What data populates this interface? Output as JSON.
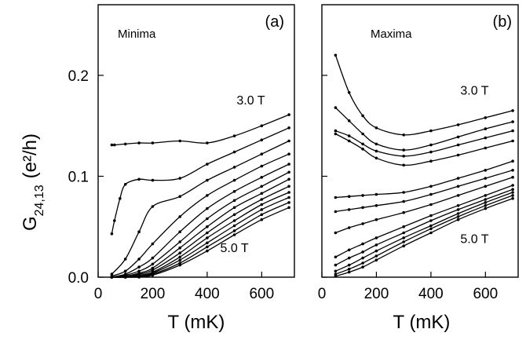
{
  "figure": {
    "ylabel": "G",
    "ylabel_sub": "24,13",
    "ylabel_unit": "(e²/h)"
  },
  "chart_data": [
    {
      "type": "line",
      "panel_label": "(a)",
      "title": "Minima",
      "xlabel": "T (mK)",
      "ylabel": "G24,13 (e²/h)",
      "xlim": [
        0,
        720
      ],
      "ylim": [
        0,
        0.27
      ],
      "xticks": [
        0,
        200,
        400,
        600
      ],
      "yticks": [
        0.0,
        0.1,
        0.2
      ],
      "ytick_labels": [
        "0.0",
        "0.1",
        "0.2"
      ],
      "grid": false,
      "annotations": [
        {
          "text": "3.0 T",
          "x": 560,
          "y": 0.171
        },
        {
          "text": "5.0 T",
          "x": 500,
          "y": 0.025
        }
      ],
      "series": [
        {
          "x": [
            50,
            60,
            100,
            150,
            200,
            300,
            400,
            500,
            600,
            700
          ],
          "y": [
            0.131,
            0.131,
            0.132,
            0.133,
            0.133,
            0.135,
            0.133,
            0.14,
            0.15,
            0.161
          ]
        },
        {
          "x": [
            50,
            60,
            80,
            100,
            150,
            200,
            300,
            400,
            500,
            600,
            700
          ],
          "y": [
            0.043,
            0.056,
            0.078,
            0.092,
            0.097,
            0.096,
            0.098,
            0.112,
            0.124,
            0.136,
            0.148
          ]
        },
        {
          "x": [
            50,
            100,
            150,
            200,
            300,
            400,
            500,
            600,
            700
          ],
          "y": [
            0.003,
            0.018,
            0.045,
            0.07,
            0.08,
            0.096,
            0.109,
            0.122,
            0.135
          ]
        },
        {
          "x": [
            50,
            100,
            150,
            200,
            300,
            400,
            500,
            600,
            700
          ],
          "y": [
            0.001,
            0.006,
            0.018,
            0.033,
            0.06,
            0.081,
            0.096,
            0.11,
            0.122
          ]
        },
        {
          "x": [
            50,
            100,
            150,
            200,
            300,
            400,
            500,
            600,
            700
          ],
          "y": [
            0.0,
            0.003,
            0.01,
            0.019,
            0.045,
            0.068,
            0.085,
            0.099,
            0.112
          ]
        },
        {
          "x": [
            50,
            100,
            150,
            200,
            300,
            400,
            500,
            600,
            700
          ],
          "y": [
            0.0,
            0.002,
            0.006,
            0.013,
            0.035,
            0.058,
            0.076,
            0.09,
            0.104
          ]
        },
        {
          "x": [
            50,
            100,
            150,
            200,
            300,
            400,
            500,
            600,
            700
          ],
          "y": [
            0.0,
            0.001,
            0.004,
            0.009,
            0.029,
            0.05,
            0.069,
            0.083,
            0.097
          ]
        },
        {
          "x": [
            50,
            100,
            150,
            200,
            300,
            400,
            500,
            600,
            700
          ],
          "y": [
            0.0,
            0.001,
            0.003,
            0.007,
            0.024,
            0.044,
            0.062,
            0.077,
            0.09
          ]
        },
        {
          "x": [
            50,
            100,
            150,
            200,
            300,
            400,
            500,
            600,
            700
          ],
          "y": [
            0.0,
            0.0,
            0.002,
            0.005,
            0.02,
            0.039,
            0.056,
            0.072,
            0.084
          ]
        },
        {
          "x": [
            50,
            100,
            150,
            200,
            300,
            400,
            500,
            600,
            700
          ],
          "y": [
            0.0,
            0.0,
            0.001,
            0.004,
            0.017,
            0.034,
            0.051,
            0.067,
            0.079
          ]
        },
        {
          "x": [
            50,
            100,
            150,
            200,
            300,
            400,
            500,
            600,
            700
          ],
          "y": [
            0.0,
            0.0,
            0.001,
            0.003,
            0.014,
            0.03,
            0.046,
            0.062,
            0.074
          ]
        },
        {
          "x": [
            50,
            100,
            150,
            200,
            300,
            400,
            500,
            600,
            700
          ],
          "y": [
            0.0,
            0.0,
            0.0,
            0.002,
            0.012,
            0.026,
            0.042,
            0.057,
            0.069
          ]
        }
      ]
    },
    {
      "type": "line",
      "panel_label": "(b)",
      "title": "Maxima",
      "xlabel": "T (mK)",
      "ylabel": "G24,13 (e²/h)",
      "xlim": [
        0,
        720
      ],
      "ylim": [
        0,
        0.27
      ],
      "xticks": [
        0,
        200,
        400,
        600
      ],
      "yticks": [
        0.0,
        0.1,
        0.2
      ],
      "grid": false,
      "annotations": [
        {
          "text": "3.0 T",
          "x": 560,
          "y": 0.181
        },
        {
          "text": "5.0 T",
          "x": 560,
          "y": 0.034
        }
      ],
      "series": [
        {
          "x": [
            50,
            100,
            150,
            200,
            300,
            400,
            500,
            600,
            700
          ],
          "y": [
            0.22,
            0.183,
            0.16,
            0.148,
            0.141,
            0.145,
            0.151,
            0.158,
            0.165
          ]
        },
        {
          "x": [
            50,
            100,
            150,
            200,
            300,
            400,
            500,
            600,
            700
          ],
          "y": [
            0.168,
            0.155,
            0.142,
            0.132,
            0.126,
            0.131,
            0.139,
            0.147,
            0.154
          ]
        },
        {
          "x": [
            50,
            100,
            150,
            200,
            300,
            400,
            500,
            600,
            700
          ],
          "y": [
            0.145,
            0.14,
            0.132,
            0.125,
            0.12,
            0.124,
            0.131,
            0.138,
            0.145
          ]
        },
        {
          "x": [
            50,
            100,
            150,
            200,
            300,
            400,
            500,
            600,
            700
          ],
          "y": [
            0.142,
            0.135,
            0.127,
            0.118,
            0.111,
            0.115,
            0.121,
            0.128,
            0.135
          ]
        },
        {
          "x": [
            50,
            100,
            150,
            200,
            300,
            400,
            500,
            600,
            700
          ],
          "y": [
            0.079,
            0.08,
            0.081,
            0.082,
            0.084,
            0.09,
            0.098,
            0.106,
            0.115
          ]
        },
        {
          "x": [
            50,
            100,
            150,
            200,
            300,
            400,
            500,
            600,
            700
          ],
          "y": [
            0.065,
            0.067,
            0.069,
            0.071,
            0.075,
            0.082,
            0.09,
            0.098,
            0.106
          ]
        },
        {
          "x": [
            50,
            100,
            150,
            200,
            300,
            400,
            500,
            600,
            700
          ],
          "y": [
            0.044,
            0.049,
            0.053,
            0.057,
            0.064,
            0.072,
            0.081,
            0.09,
            0.099
          ]
        },
        {
          "x": [
            50,
            100,
            150,
            200,
            300,
            400,
            500,
            600,
            700
          ],
          "y": [
            0.02,
            0.027,
            0.033,
            0.039,
            0.05,
            0.061,
            0.071,
            0.081,
            0.091
          ]
        },
        {
          "x": [
            50,
            100,
            150,
            200,
            300,
            400,
            500,
            600,
            700
          ],
          "y": [
            0.012,
            0.019,
            0.025,
            0.032,
            0.044,
            0.056,
            0.067,
            0.077,
            0.087
          ]
        },
        {
          "x": [
            50,
            100,
            150,
            200,
            300,
            400,
            500,
            600,
            700
          ],
          "y": [
            0.006,
            0.012,
            0.019,
            0.026,
            0.039,
            0.051,
            0.063,
            0.074,
            0.084
          ]
        },
        {
          "x": [
            50,
            100,
            150,
            200,
            300,
            400,
            500,
            600,
            700
          ],
          "y": [
            0.003,
            0.008,
            0.014,
            0.021,
            0.035,
            0.048,
            0.06,
            0.071,
            0.081
          ]
        },
        {
          "x": [
            50,
            100,
            150,
            200,
            300,
            400,
            500,
            600,
            700
          ],
          "y": [
            0.001,
            0.005,
            0.01,
            0.017,
            0.031,
            0.044,
            0.057,
            0.068,
            0.078
          ]
        }
      ]
    }
  ]
}
